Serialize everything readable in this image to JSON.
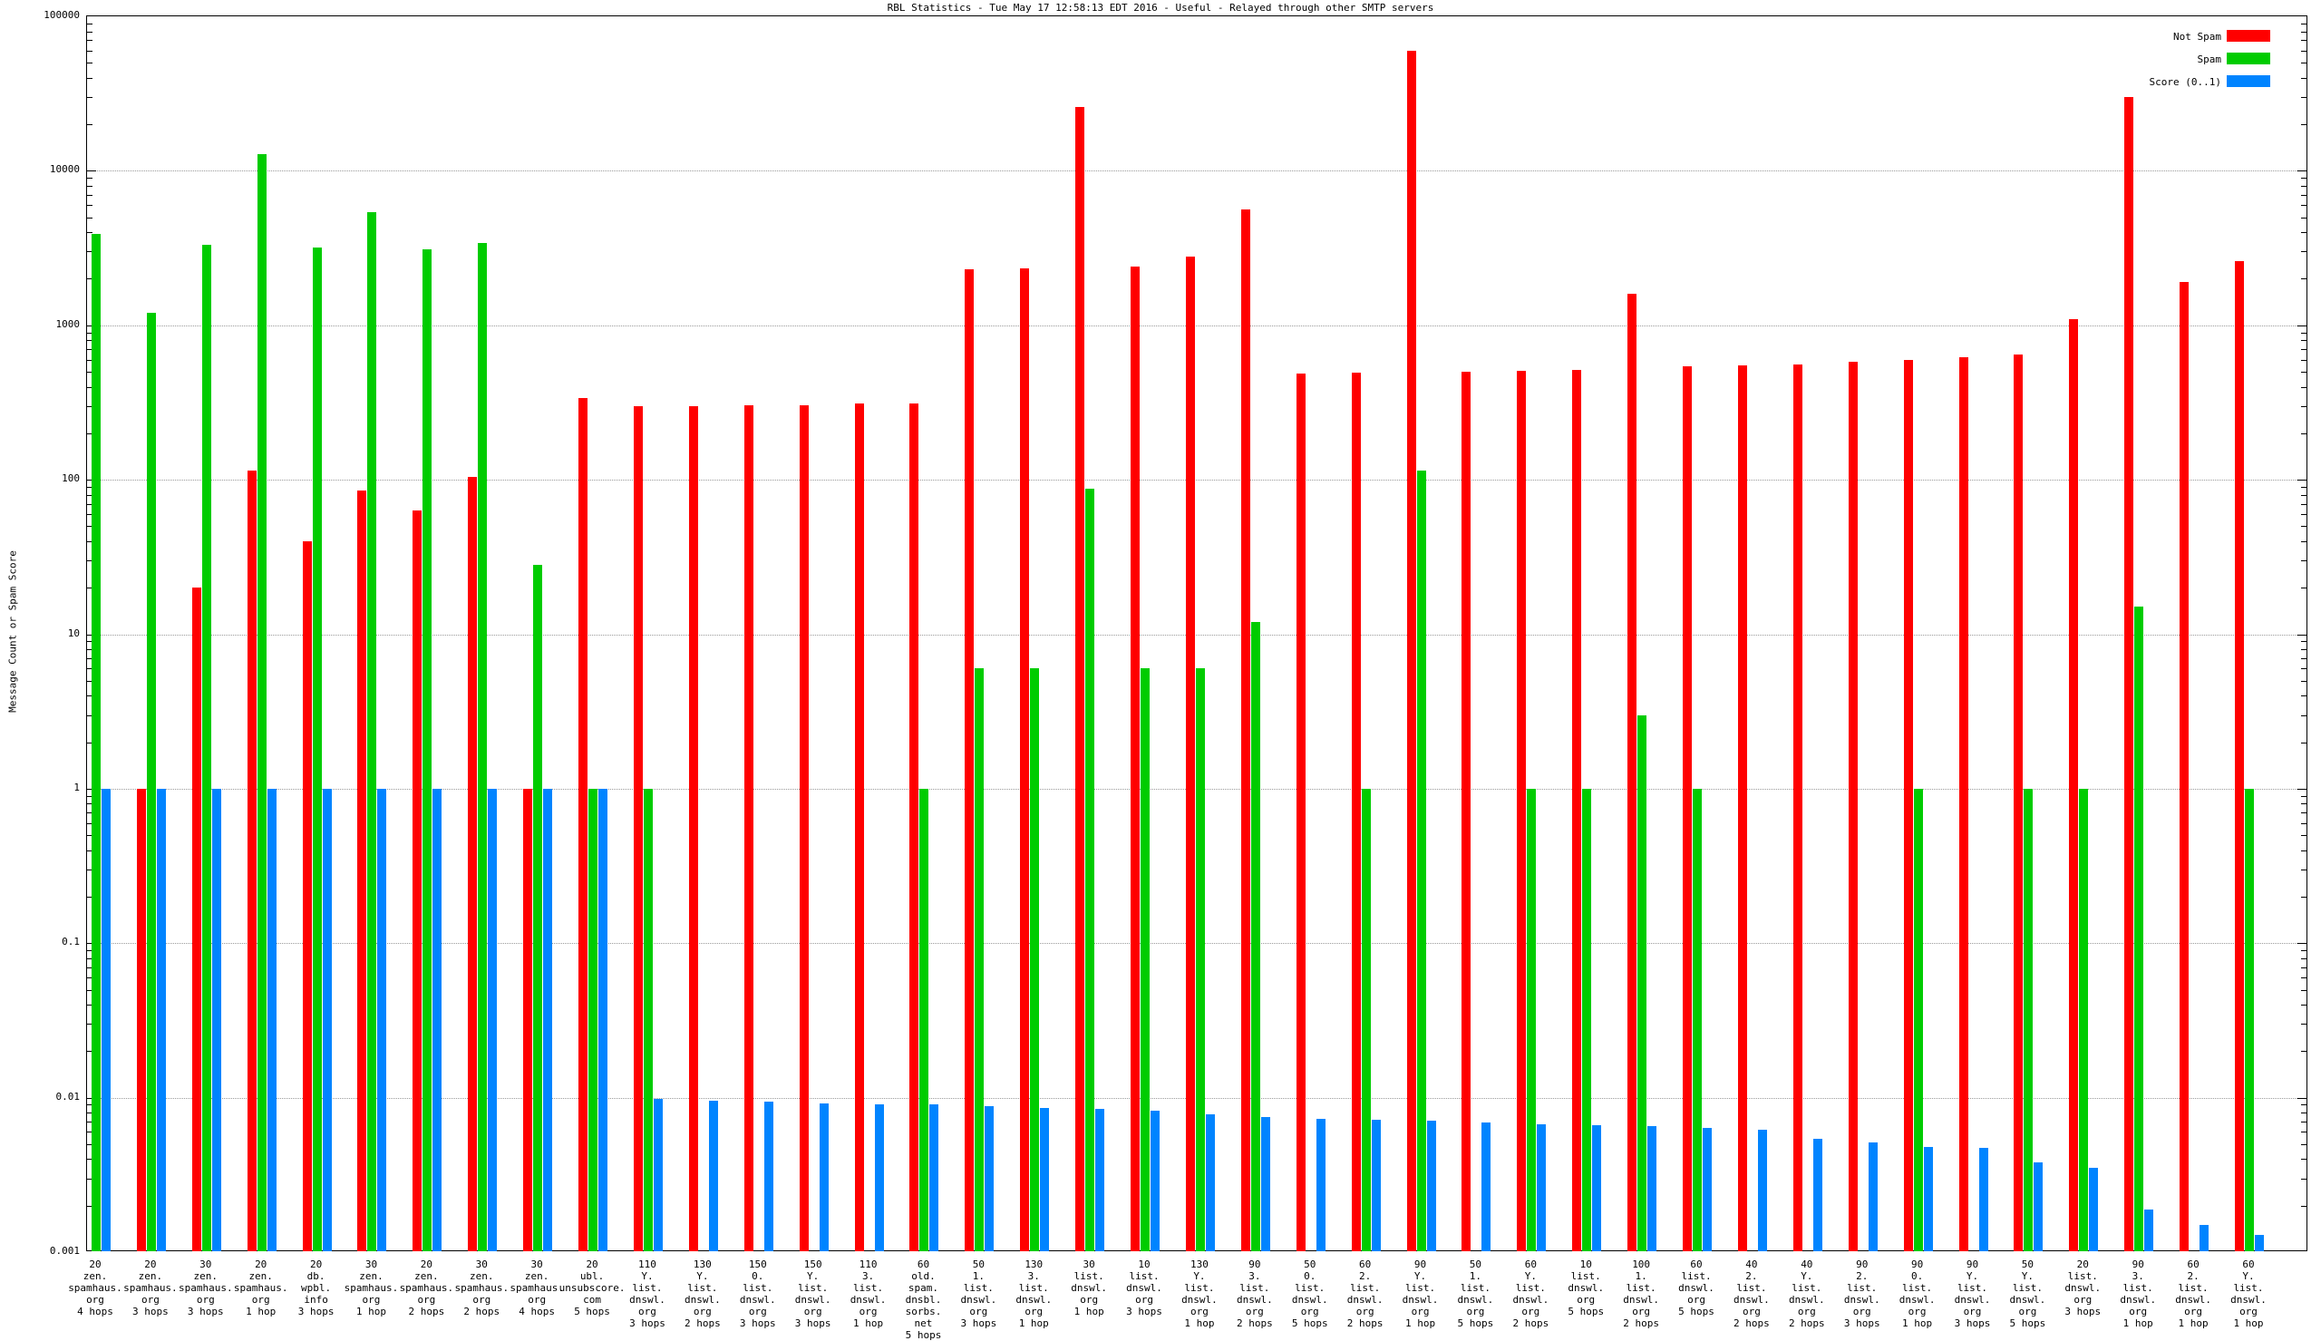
{
  "chart_data": {
    "type": "bar",
    "title": "RBL Statistics - Tue May 17 12:58:13 EDT 2016 - Useful - Relayed through other SMTP servers",
    "ylabel": "Message Count or Spam Score",
    "xlabel": "",
    "yscale": "log",
    "ylim": [
      0.001,
      100000
    ],
    "ytick_labels": [
      "100000",
      "10000",
      "1000",
      "100",
      "10",
      "1",
      "0.1",
      "0.01",
      "0.001"
    ],
    "grid": "horizontal-dotted",
    "legend_position": "top-right",
    "legend": [
      {
        "name": "Not Spam",
        "color": "#ff0000",
        "key": "not_spam"
      },
      {
        "name": "Spam",
        "color": "#00cc00",
        "key": "spam"
      },
      {
        "name": "Score (0..1)",
        "color": "#0084ff",
        "key": "score"
      }
    ],
    "series": [
      {
        "name": "Not Spam",
        "values": [
          0,
          1,
          20,
          115,
          40,
          85,
          63,
          105,
          1,
          340,
          300,
          300,
          305,
          305,
          310,
          310,
          2300,
          2350,
          26000,
          2400,
          2800,
          5600,
          490,
          495,
          60000,
          500,
          505,
          515,
          1600,
          540,
          550,
          560,
          580,
          600,
          620,
          650,
          1100,
          30000,
          1900,
          2600
        ]
      },
      {
        "name": "Spam",
        "values": [
          3900,
          1200,
          3300,
          12800,
          3200,
          5400,
          3100,
          3400,
          28,
          1,
          1,
          0,
          0,
          0,
          0,
          1,
          6,
          6,
          88,
          6,
          6,
          12,
          0,
          1,
          115,
          0,
          1,
          1,
          3,
          1,
          0,
          0,
          0,
          1,
          0,
          1,
          1,
          15,
          0,
          1
        ]
      },
      {
        "name": "Score (0..1)",
        "values": [
          1,
          1,
          1,
          1,
          1,
          1,
          1,
          1,
          1,
          1,
          0.0098,
          0.0096,
          0.0094,
          0.0092,
          0.0091,
          0.009,
          0.0088,
          0.0086,
          0.0085,
          0.0082,
          0.0078,
          0.0075,
          0.0073,
          0.0072,
          0.0071,
          0.0069,
          0.0067,
          0.0066,
          0.0065,
          0.0064,
          0.0062,
          0.0054,
          0.0051,
          0.0048,
          0.0047,
          0.0038,
          0.0035,
          0.0019,
          0.0015,
          0.0013
        ]
      }
    ],
    "categories": [
      "20\nzen.\nspamhaus.\norg\n4 hops",
      "20\nzen.\nspamhaus.\norg\n3 hops",
      "30\nzen.\nspamhaus.\norg\n3 hops",
      "20\nzen.\nspamhaus.\norg\n1 hop",
      "20\ndb.\nwpbl.\ninfo\n3 hops",
      "30\nzen.\nspamhaus.\norg\n1 hop",
      "20\nzen.\nspamhaus.\norg\n2 hops",
      "30\nzen.\nspamhaus.\norg\n2 hops",
      "30\nzen.\nspamhaus.\norg\n4 hops",
      "20\nubl.\nunsubscore.\ncom\n5 hops",
      "110\nY.\nlist.\ndnswl.\norg\n3 hops",
      "130\nY.\nlist.\ndnswl.\norg\n2 hops",
      "150\n0.\nlist.\ndnswl.\norg\n3 hops",
      "150\nY.\nlist.\ndnswl.\norg\n3 hops",
      "110\n3.\nlist.\ndnswl.\norg\n1 hop",
      "60\nold.\nspam.\ndnsbl.\nsorbs.\nnet\n5 hops",
      "50\n1.\nlist.\ndnswl.\norg\n3 hops",
      "130\n3.\nlist.\ndnswl.\norg\n1 hop",
      "30\nlist.\ndnswl.\norg\n1 hop",
      "10\nlist.\ndnswl.\norg\n3 hops",
      "130\nY.\nlist.\ndnswl.\norg\n1 hop",
      "90\n3.\nlist.\ndnswl.\norg\n2 hops",
      "50\n0.\nlist.\ndnswl.\norg\n5 hops",
      "60\n2.\nlist.\ndnswl.\norg\n2 hops",
      "90\nY.\nlist.\ndnswl.\norg\n1 hop",
      "50\n1.\nlist.\ndnswl.\norg\n5 hops",
      "60\nY.\nlist.\ndnswl.\norg\n2 hops",
      "10\nlist.\ndnswl.\norg\n5 hops",
      "100\n1.\nlist.\ndnswl.\norg\n2 hops",
      "60\nlist.\ndnswl.\norg\n5 hops",
      "40\n2.\nlist.\ndnswl.\norg\n2 hops",
      "40\nY.\nlist.\ndnswl.\norg\n2 hops",
      "90\n2.\nlist.\ndnswl.\norg\n3 hops",
      "90\n0.\nlist.\ndnswl.\norg\n1 hop",
      "90\nY.\nlist.\ndnswl.\norg\n3 hops",
      "50\nY.\nlist.\ndnswl.\norg\n5 hops",
      "20\nlist.\ndnswl.\norg\n3 hops",
      "90\n3.\nlist.\ndnswl.\norg\n1 hop",
      "60\n2.\nlist.\ndnswl.\norg\n1 hop",
      "60\nY.\nlist.\ndnswl.\norg\n1 hop"
    ]
  }
}
